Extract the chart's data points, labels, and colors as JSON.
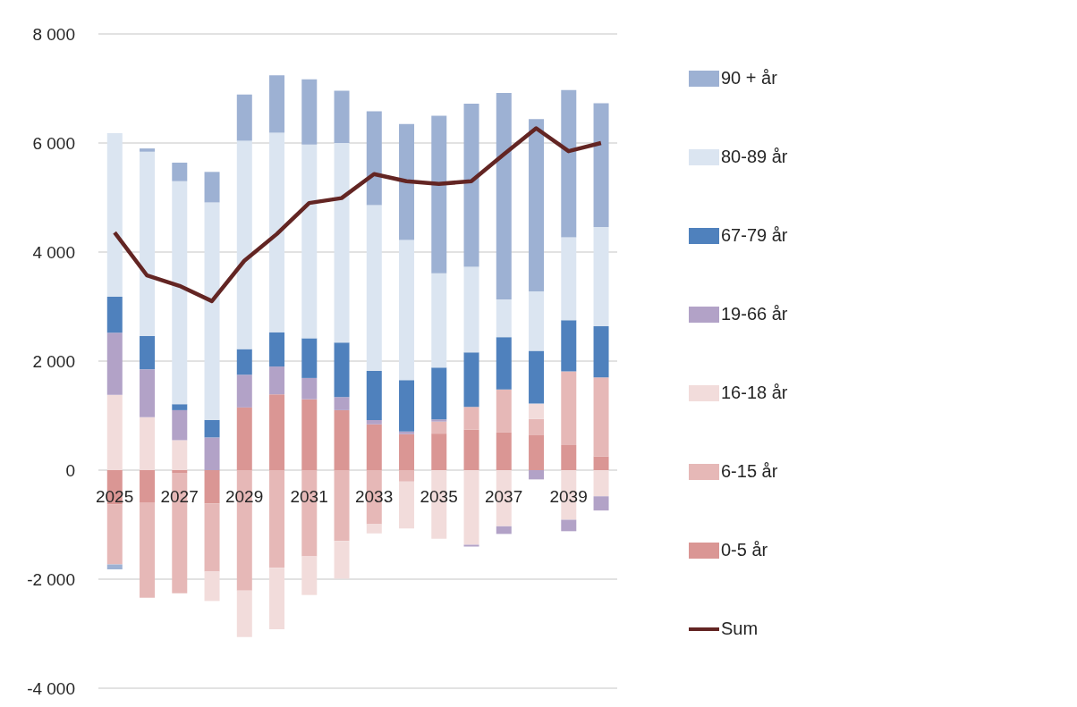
{
  "chart_data": {
    "type": "bar",
    "stacked": true,
    "categories": [
      "2025",
      null,
      "2027",
      null,
      "2029",
      null,
      "2031",
      null,
      "2033",
      null,
      "2035",
      null,
      "2037",
      null,
      "2039",
      null
    ],
    "series": [
      {
        "name": "0-5 år",
        "color": "#da9694",
        "values": [
          -630,
          -590,
          -60,
          -610,
          1150,
          1390,
          1300,
          1100,
          840,
          660,
          670,
          740,
          690,
          650,
          460,
          250
        ]
      },
      {
        "name": "6-15 år",
        "color": "#e6b8b7",
        "values": [
          -1100,
          -1750,
          -2200,
          -1250,
          -2210,
          -1790,
          -1580,
          -1300,
          -990,
          -210,
          220,
          420,
          790,
          290,
          1350,
          1450
        ]
      },
      {
        "name": "16-18 år",
        "color": "#f2dcdb",
        "values": [
          1380,
          970,
          550,
          -540,
          -850,
          -1130,
          -710,
          -690,
          -170,
          -860,
          -1260,
          -1370,
          -1030,
          280,
          -910,
          -480
        ]
      },
      {
        "name": "19-66 år",
        "color": "#b2a2c7",
        "values": [
          1140,
          880,
          550,
          600,
          600,
          510,
          390,
          240,
          80,
          50,
          40,
          -30,
          -140,
          -170,
          -210,
          -260
        ]
      },
      {
        "name": "67-79 år",
        "color": "#4f81bd",
        "values": [
          660,
          610,
          110,
          320,
          470,
          630,
          730,
          1000,
          900,
          940,
          950,
          1000,
          960,
          970,
          940,
          940
        ]
      },
      {
        "name": "80-89 år",
        "color": "#dbe5f1",
        "values": [
          3000,
          3380,
          4090,
          3990,
          3820,
          3660,
          3550,
          3660,
          3040,
          2570,
          1730,
          1570,
          690,
          1090,
          1520,
          1820
        ]
      },
      {
        "name": "90 + år",
        "color": "#9db1d3",
        "values": [
          -90,
          60,
          340,
          560,
          850,
          1050,
          1200,
          960,
          1720,
          2130,
          2890,
          2990,
          3790,
          3160,
          2700,
          2270
        ]
      },
      {
        "name": "Sum",
        "type": "line",
        "color": "#632523",
        "values": [
          4360,
          3570,
          3380,
          3100,
          3840,
          4330,
          4900,
          4990,
          5430,
          5300,
          5250,
          5300,
          5790,
          6270,
          5850,
          6000
        ]
      }
    ],
    "ylim": [
      -4000,
      8000
    ],
    "yticks": [
      {
        "value": -4000,
        "label": "-4 000"
      },
      {
        "value": -2000,
        "label": "-2 000"
      },
      0,
      {
        "value": 2000,
        "label": "2 000"
      },
      {
        "value": 4000,
        "label": "4 000"
      },
      {
        "value": 6000,
        "label": "6 000"
      },
      {
        "value": 8000,
        "label": "8 000"
      }
    ],
    "grid": "y",
    "legend": "right"
  }
}
